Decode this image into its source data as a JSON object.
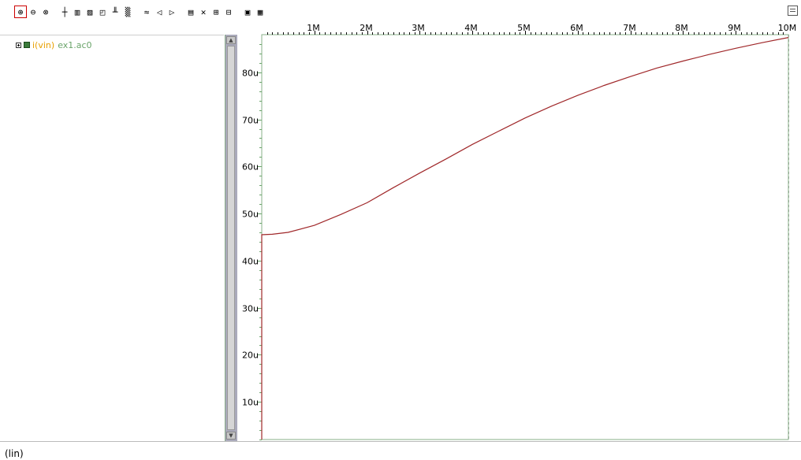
{
  "toolbar": {
    "groups": [
      {
        "name": "zoom",
        "icons": [
          "zoom-in-icon",
          "zoom-out-icon",
          "zoom-fit-icon"
        ]
      },
      {
        "name": "cursor",
        "icons": [
          "crosshair-icon",
          "grid-icon",
          "measure-icon",
          "marker-icon",
          "split-icon",
          "pattern-icon"
        ]
      },
      {
        "name": "wave",
        "icons": [
          "wave-icon",
          "prev-icon",
          "next-icon"
        ]
      },
      {
        "name": "edit",
        "icons": [
          "layers-icon",
          "delete-icon",
          "hierarchy-icon",
          "tree-icon"
        ]
      },
      {
        "name": "view",
        "icons": [
          "panel-icon",
          "settings-icon"
        ]
      }
    ]
  },
  "tree": {
    "signal_name": "i(vin)",
    "signal_source": "ex1.ac0"
  },
  "xscale_label": "(lin)",
  "chart_data": {
    "type": "line",
    "title": "",
    "xlabel": "",
    "ylabel": "",
    "x_ticks": [
      "1M",
      "2M",
      "3M",
      "4M",
      "5M",
      "6M",
      "7M",
      "8M",
      "9M",
      "10M"
    ],
    "y_ticks": [
      "10u",
      "20u",
      "30u",
      "40u",
      "50u",
      "60u",
      "70u",
      "80u"
    ],
    "xlim": [
      0,
      10000000
    ],
    "ylim": [
      2e-06,
      8.8e-05
    ],
    "grid": true,
    "series": [
      {
        "name": "i(vin)",
        "color": "#a0282a",
        "x": [
          0,
          0,
          200000,
          500000,
          1000000,
          1500000,
          2000000,
          2500000,
          3000000,
          3500000,
          4000000,
          4500000,
          5000000,
          5500000,
          6000000,
          6500000,
          7000000,
          7500000,
          8000000,
          8500000,
          9000000,
          9500000,
          10000000
        ],
        "y": [
          2e-06,
          4.55e-05,
          4.56e-05,
          4.6e-05,
          4.75e-05,
          4.98e-05,
          5.23e-05,
          5.55e-05,
          5.86e-05,
          6.16e-05,
          6.47e-05,
          6.75e-05,
          7.03e-05,
          7.28e-05,
          7.51e-05,
          7.72e-05,
          7.91e-05,
          8.09e-05,
          8.24e-05,
          8.38e-05,
          8.51e-05,
          8.63e-05,
          8.74e-05
        ]
      }
    ]
  }
}
